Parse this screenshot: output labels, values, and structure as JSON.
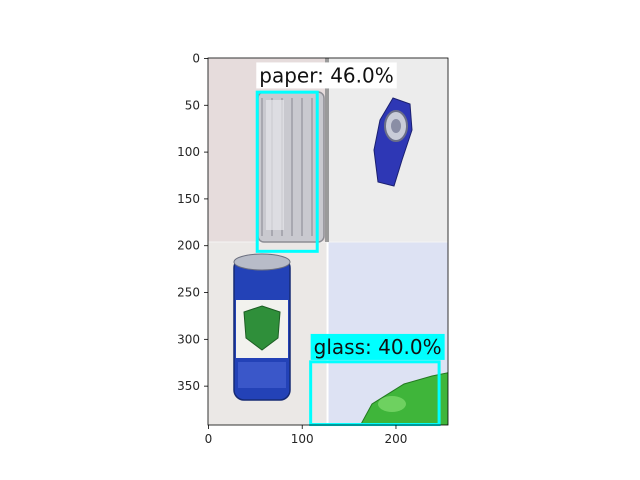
{
  "chart_data": {
    "type": "image-detections",
    "x_ticks": [
      0,
      100,
      200
    ],
    "y_ticks": [
      0,
      50,
      100,
      150,
      200,
      250,
      300,
      350
    ],
    "xlim": [
      -0.5,
      255.5
    ],
    "ylim": [
      391.5,
      -0.5
    ],
    "grid": false,
    "image_tiles": [
      {
        "name": "tile-top-left",
        "x": [
          0,
          127
        ],
        "y": [
          0,
          196
        ],
        "color": "#e6dcdc"
      },
      {
        "name": "tile-top-right",
        "x": [
          127,
          255
        ],
        "y": [
          0,
          196
        ],
        "color": "#ececec"
      },
      {
        "name": "tile-bottom-left",
        "x": [
          0,
          127
        ],
        "y": [
          196,
          391
        ],
        "color": "#ebe8e6"
      },
      {
        "name": "tile-bottom-right",
        "x": [
          127,
          255
        ],
        "y": [
          196,
          391
        ],
        "color": "#dde2f3"
      }
    ],
    "detections": [
      {
        "label": "paper: 46.0%",
        "class": "paper",
        "score": 46.0,
        "box": {
          "x1": 52,
          "y1": 36,
          "x2": 116,
          "y2": 206
        },
        "label_anchor": {
          "x": 51,
          "y": 32
        },
        "color": "#00ffff"
      },
      {
        "label": "glass: 40.0%",
        "class": "glass",
        "score": 40.0,
        "box": {
          "x1": 109,
          "y1": 324,
          "x2": 246,
          "y2": 391
        },
        "label_anchor": {
          "x": 109,
          "y": 322
        },
        "color": "#00ffff"
      }
    ]
  }
}
